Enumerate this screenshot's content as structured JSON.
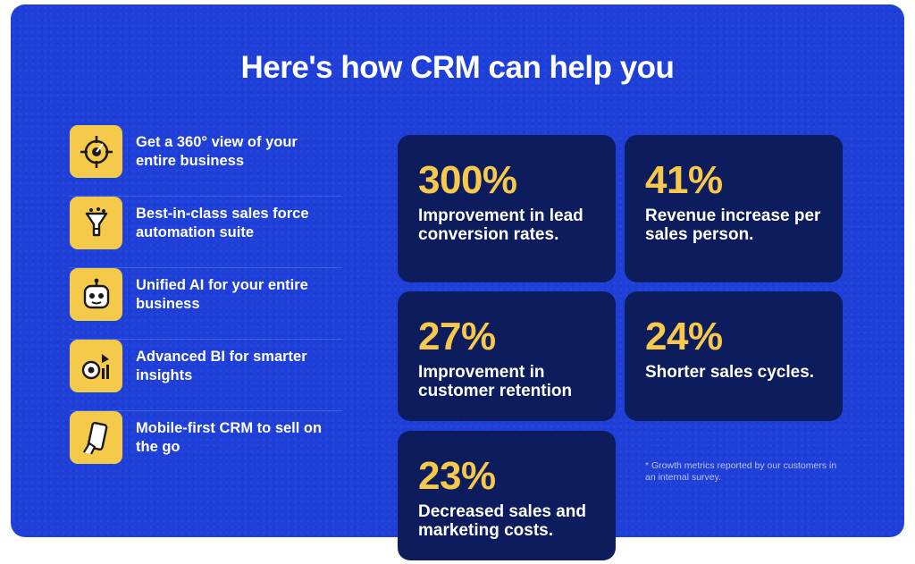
{
  "headline": "Here's how CRM can help you",
  "features": [
    {
      "icon": "target-icon",
      "text": "Get a 360° view of your entire business"
    },
    {
      "icon": "funnel-icon",
      "text": "Best-in-class sales force automation suite"
    },
    {
      "icon": "robot-icon",
      "text": "Unified AI for your entire business"
    },
    {
      "icon": "analytics-icon",
      "text": "Advanced BI for smarter insights"
    },
    {
      "icon": "mobile-icon",
      "text": "Mobile-first CRM to sell on the go"
    }
  ],
  "stats": [
    {
      "value": "300%",
      "label": "Improvement in lead conversion rates."
    },
    {
      "value": "41%",
      "label": "Revenue increase per sales person."
    },
    {
      "value": "27%",
      "label": "Improvement in customer retention"
    },
    {
      "value": "24%",
      "label": "Shorter sales cycles."
    },
    {
      "value": "23%",
      "label": "Decreased sales and marketing costs."
    }
  ],
  "footnote": "* Growth metrics reported by our customers in an internal survey.",
  "colors": {
    "panel": "#1f3fd9",
    "card": "#0c1c5c",
    "accent": "#f6c84c",
    "icon_bg": "#f5c94a"
  }
}
